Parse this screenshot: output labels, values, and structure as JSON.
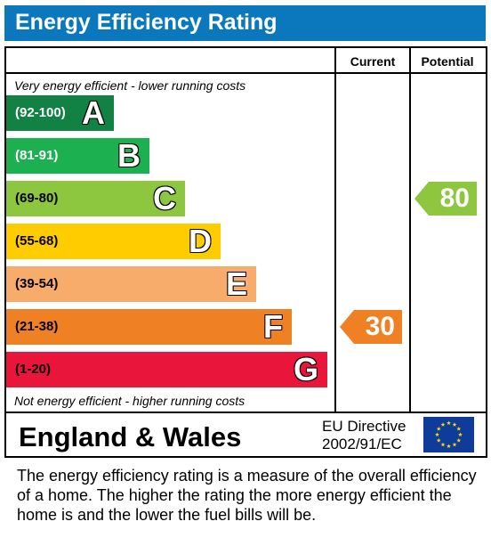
{
  "title": "Energy Efficiency Rating",
  "columns": {
    "current": "Current",
    "potential": "Potential"
  },
  "top_caption": "Very energy efficient - lower running costs",
  "bottom_caption": "Not energy efficient - higher running costs",
  "region": "England & Wales",
  "directive": {
    "line1": "EU Directive",
    "line2": "2002/91/EC"
  },
  "footnote": "The energy efficiency rating is a measure of the overall efficiency of a home.  The higher the rating the more energy efficient the home is and the lower the fuel bills will be.",
  "chart_data": {
    "type": "bar",
    "categories": [
      "A",
      "B",
      "C",
      "D",
      "E",
      "F",
      "G"
    ],
    "ranges": [
      "(92-100)",
      "(81-91)",
      "(69-80)",
      "(55-68)",
      "(39-54)",
      "(21-38)",
      "(1-20)"
    ],
    "band_colors": [
      "#128244",
      "#1db050",
      "#8dc63f",
      "#ffcc00",
      "#f7ac6b",
      "#ef8023",
      "#e9153b"
    ],
    "range_text_colors": [
      "#ffffff",
      "#ffffff",
      "#000000",
      "#000000",
      "#000000",
      "#000000",
      "#000000"
    ],
    "series": [
      {
        "name": "Current",
        "value": 30,
        "band": "F",
        "color": "#ef8023"
      },
      {
        "name": "Potential",
        "value": 80,
        "band": "C",
        "color": "#8dc63f"
      }
    ]
  },
  "icons": {
    "flag": "eu-flag-icon"
  }
}
